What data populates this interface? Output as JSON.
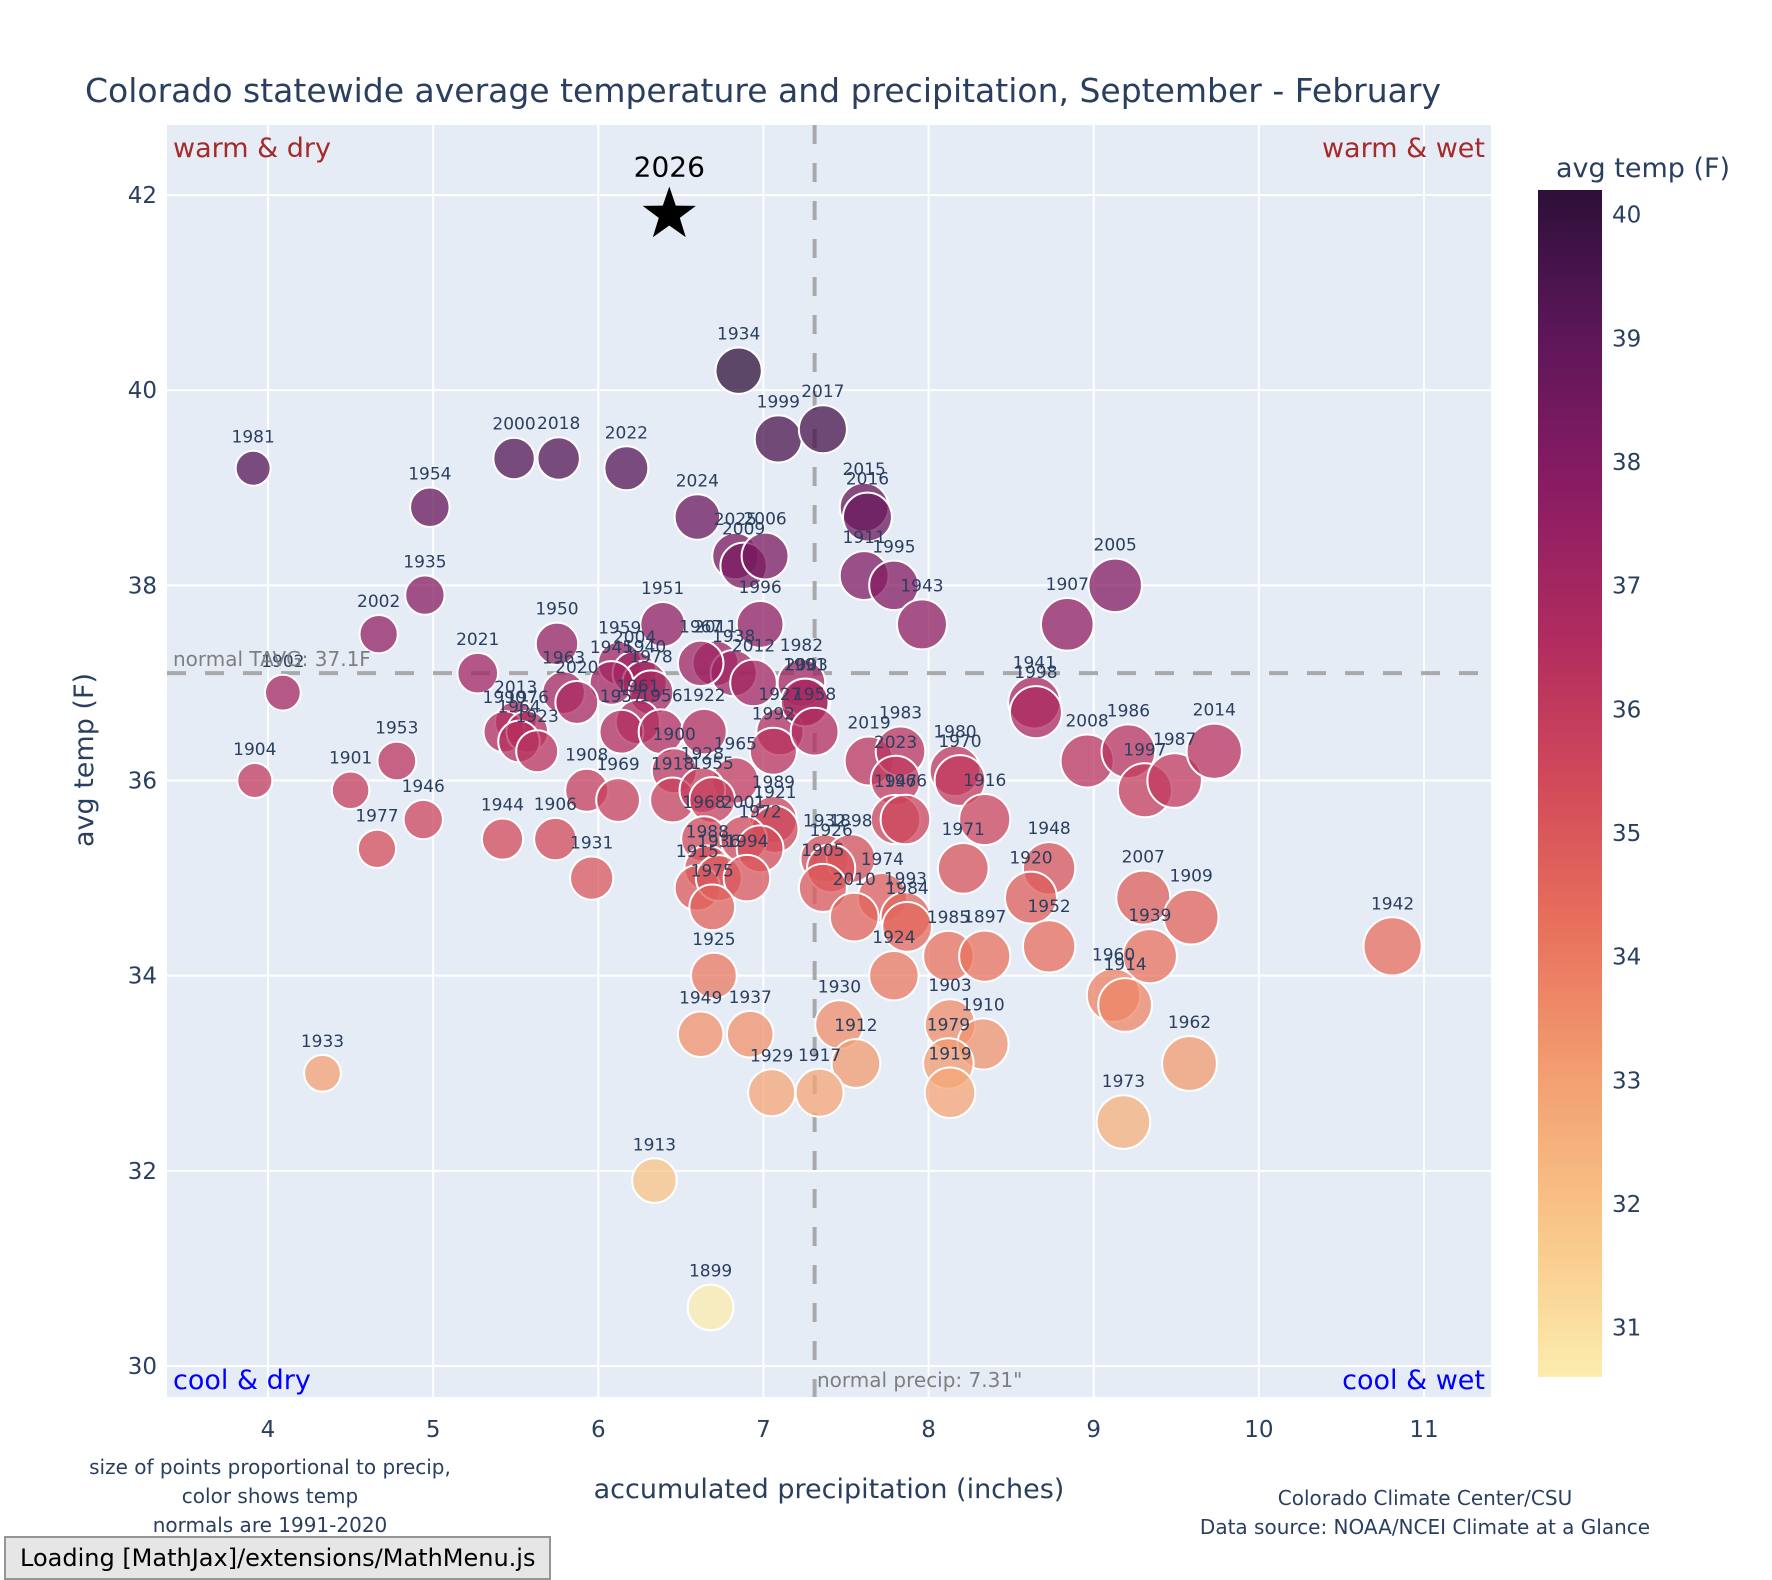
{
  "chart_data": {
    "type": "scatter",
    "title": "Colorado statewide average temperature and precipitation, September - February",
    "xlabel": "accumulated precipitation (inches)",
    "ylabel": "avg temp (F)",
    "xlim": [
      3.4,
      11.4
    ],
    "ylim": [
      29.7,
      42.7
    ],
    "xticks": [
      4,
      5,
      6,
      7,
      8,
      9,
      10,
      11
    ],
    "yticks": [
      30,
      32,
      34,
      36,
      38,
      40,
      42
    ],
    "grid": true,
    "colorbar": {
      "title": "avg temp (F)",
      "colorscale": "magma-like (light yellow = cool, dark purple = warm)",
      "range": [
        30.6,
        40.2
      ],
      "ticks": [
        31,
        32,
        33,
        34,
        35,
        36,
        37,
        38,
        39,
        40
      ],
      "placement": "right"
    },
    "marker_size_note": "size of points proportional to precip",
    "normal_temp": 37.1,
    "normal_temp_label": "normal TAVG: 37.1F",
    "normal_precip": 7.31,
    "normal_precip_label": "normal precip: 7.31\"",
    "quadrant_labels": {
      "top_left": "warm & dry",
      "top_right": "warm & wet",
      "bottom_left": "cool & dry",
      "bottom_right": "cool & wet"
    },
    "highlight": {
      "label": "2026",
      "precip": 6.43,
      "temp": 41.8,
      "marker": "star"
    },
    "points": [
      {
        "year": "1981",
        "precip": 3.91,
        "temp": 39.2
      },
      {
        "year": "1954",
        "precip": 4.98,
        "temp": 38.8
      },
      {
        "year": "2000",
        "precip": 5.49,
        "temp": 39.3
      },
      {
        "year": "2018",
        "precip": 5.76,
        "temp": 39.3
      },
      {
        "year": "2022",
        "precip": 6.17,
        "temp": 39.2
      },
      {
        "year": "1934",
        "precip": 6.85,
        "temp": 40.2
      },
      {
        "year": "1999",
        "precip": 7.09,
        "temp": 39.5
      },
      {
        "year": "2017",
        "precip": 7.36,
        "temp": 39.6
      },
      {
        "year": "2024",
        "precip": 6.6,
        "temp": 38.7
      },
      {
        "year": "2015",
        "precip": 7.61,
        "temp": 38.8
      },
      {
        "year": "2016",
        "precip": 7.63,
        "temp": 38.7
      },
      {
        "year": "2025",
        "precip": 6.83,
        "temp": 38.3
      },
      {
        "year": "2009",
        "precip": 6.88,
        "temp": 38.2
      },
      {
        "year": "2006",
        "precip": 7.01,
        "temp": 38.3
      },
      {
        "year": "1911",
        "precip": 7.61,
        "temp": 38.1
      },
      {
        "year": "1995",
        "precip": 7.79,
        "temp": 38.0
      },
      {
        "year": "1996",
        "precip": 6.98,
        "temp": 37.6
      },
      {
        "year": "1943",
        "precip": 7.96,
        "temp": 37.6
      },
      {
        "year": "1935",
        "precip": 4.95,
        "temp": 37.9
      },
      {
        "year": "2002",
        "precip": 4.67,
        "temp": 37.5
      },
      {
        "year": "2005",
        "precip": 9.13,
        "temp": 38.0
      },
      {
        "year": "1907",
        "precip": 8.84,
        "temp": 37.6
      },
      {
        "year": "1951",
        "precip": 6.39,
        "temp": 37.6
      },
      {
        "year": "1950",
        "precip": 5.75,
        "temp": 37.4
      },
      {
        "year": "2011",
        "precip": 6.71,
        "temp": 37.2
      },
      {
        "year": "1938",
        "precip": 6.82,
        "temp": 37.1
      },
      {
        "year": "2012",
        "precip": 6.94,
        "temp": 37.0
      },
      {
        "year": "1982",
        "precip": 7.23,
        "temp": 37.0
      },
      {
        "year": "2021",
        "precip": 5.27,
        "temp": 37.1
      },
      {
        "year": "1902",
        "precip": 4.09,
        "temp": 36.9
      },
      {
        "year": "1959",
        "precip": 6.13,
        "temp": 37.2
      },
      {
        "year": "2004",
        "precip": 6.22,
        "temp": 37.1
      },
      {
        "year": "1940",
        "precip": 6.28,
        "temp": 37.0
      },
      {
        "year": "1963",
        "precip": 5.79,
        "temp": 36.9
      },
      {
        "year": "1945",
        "precip": 6.08,
        "temp": 37.0
      },
      {
        "year": "1978",
        "precip": 6.32,
        "temp": 36.9
      },
      {
        "year": "2020",
        "precip": 5.87,
        "temp": 36.8
      },
      {
        "year": "1967",
        "precip": 6.62,
        "temp": 37.2
      },
      {
        "year": "2003",
        "precip": 7.26,
        "temp": 36.8
      },
      {
        "year": "1961",
        "precip": 6.24,
        "temp": 36.6
      },
      {
        "year": "1957",
        "precip": 6.14,
        "temp": 36.5
      },
      {
        "year": "1956",
        "precip": 6.38,
        "temp": 36.5
      },
      {
        "year": "1922",
        "precip": 6.64,
        "temp": 36.5
      },
      {
        "year": "1927",
        "precip": 7.1,
        "temp": 36.5
      },
      {
        "year": "1991",
        "precip": 7.25,
        "temp": 36.8
      },
      {
        "year": "2013",
        "precip": 5.5,
        "temp": 36.6
      },
      {
        "year": "1990",
        "precip": 5.43,
        "temp": 36.5
      },
      {
        "year": "1976",
        "precip": 5.57,
        "temp": 36.5
      },
      {
        "year": "1964",
        "precip": 5.52,
        "temp": 36.4
      },
      {
        "year": "1923",
        "precip": 5.63,
        "temp": 36.3
      },
      {
        "year": "1953",
        "precip": 4.78,
        "temp": 36.2
      },
      {
        "year": "1992",
        "precip": 7.06,
        "temp": 36.3
      },
      {
        "year": "1958",
        "precip": 7.31,
        "temp": 36.5
      },
      {
        "year": "1900",
        "precip": 6.46,
        "temp": 36.1
      },
      {
        "year": "1965",
        "precip": 6.83,
        "temp": 36.0
      },
      {
        "year": "2019",
        "precip": 7.64,
        "temp": 36.2
      },
      {
        "year": "1983",
        "precip": 7.83,
        "temp": 36.3
      },
      {
        "year": "2023",
        "precip": 7.8,
        "temp": 36.0
      },
      {
        "year": "1980",
        "precip": 8.16,
        "temp": 36.1
      },
      {
        "year": "1970",
        "precip": 8.19,
        "temp": 36.0
      },
      {
        "year": "1916",
        "precip": 8.34,
        "temp": 35.6
      },
      {
        "year": "1947",
        "precip": 7.8,
        "temp": 35.6
      },
      {
        "year": "1941",
        "precip": 8.64,
        "temp": 36.8
      },
      {
        "year": "1998",
        "precip": 8.65,
        "temp": 36.7
      },
      {
        "year": "2008",
        "precip": 8.96,
        "temp": 36.2
      },
      {
        "year": "1986",
        "precip": 9.21,
        "temp": 36.3
      },
      {
        "year": "1997",
        "precip": 9.31,
        "temp": 35.9
      },
      {
        "year": "1987",
        "precip": 9.49,
        "temp": 36.0
      },
      {
        "year": "2014",
        "precip": 9.73,
        "temp": 36.3
      },
      {
        "year": "1904",
        "precip": 3.92,
        "temp": 36.0
      },
      {
        "year": "1901",
        "precip": 4.5,
        "temp": 35.9
      },
      {
        "year": "1946",
        "precip": 4.94,
        "temp": 35.6
      },
      {
        "year": "1977",
        "precip": 4.66,
        "temp": 35.3
      },
      {
        "year": "1908",
        "precip": 5.93,
        "temp": 35.9
      },
      {
        "year": "1969",
        "precip": 6.12,
        "temp": 35.8
      },
      {
        "year": "1918",
        "precip": 6.45,
        "temp": 35.8
      },
      {
        "year": "1928",
        "precip": 6.63,
        "temp": 35.9
      },
      {
        "year": "1955",
        "precip": 6.69,
        "temp": 35.8
      },
      {
        "year": "1989",
        "precip": 7.06,
        "temp": 35.6
      },
      {
        "year": "1921",
        "precip": 7.07,
        "temp": 35.5
      },
      {
        "year": "1968",
        "precip": 6.64,
        "temp": 35.4
      },
      {
        "year": "2001",
        "precip": 6.88,
        "temp": 35.4
      },
      {
        "year": "1972",
        "precip": 6.98,
        "temp": 35.3
      },
      {
        "year": "1944",
        "precip": 5.42,
        "temp": 35.4
      },
      {
        "year": "1906",
        "precip": 5.74,
        "temp": 35.4
      },
      {
        "year": "1931",
        "precip": 5.96,
        "temp": 35.0
      },
      {
        "year": "1966",
        "precip": 7.86,
        "temp": 35.6
      },
      {
        "year": "1971",
        "precip": 8.21,
        "temp": 35.1
      },
      {
        "year": "1932",
        "precip": 7.37,
        "temp": 35.2
      },
      {
        "year": "1898",
        "precip": 7.53,
        "temp": 35.2
      },
      {
        "year": "1926",
        "precip": 7.41,
        "temp": 35.1
      },
      {
        "year": "1988",
        "precip": 6.66,
        "temp": 35.1
      },
      {
        "year": "1915",
        "precip": 6.6,
        "temp": 34.9
      },
      {
        "year": "1936",
        "precip": 6.73,
        "temp": 35.0
      },
      {
        "year": "1994",
        "precip": 6.9,
        "temp": 35.0
      },
      {
        "year": "1905",
        "precip": 7.36,
        "temp": 34.9
      },
      {
        "year": "1975",
        "precip": 6.69,
        "temp": 34.7
      },
      {
        "year": "1974",
        "precip": 7.72,
        "temp": 34.8
      },
      {
        "year": "2010",
        "precip": 7.55,
        "temp": 34.6
      },
      {
        "year": "1993",
        "precip": 7.86,
        "temp": 34.6
      },
      {
        "year": "1984",
        "precip": 7.87,
        "temp": 34.5
      },
      {
        "year": "1985",
        "precip": 8.12,
        "temp": 34.2
      },
      {
        "year": "1897",
        "precip": 8.34,
        "temp": 34.2
      },
      {
        "year": "1924",
        "precip": 7.79,
        "temp": 34.0
      },
      {
        "year": "1948",
        "precip": 8.73,
        "temp": 35.1
      },
      {
        "year": "1920",
        "precip": 8.62,
        "temp": 34.8
      },
      {
        "year": "1952",
        "precip": 8.73,
        "temp": 34.3
      },
      {
        "year": "2007",
        "precip": 9.3,
        "temp": 34.8
      },
      {
        "year": "1939",
        "precip": 9.34,
        "temp": 34.2
      },
      {
        "year": "1909",
        "precip": 9.59,
        "temp": 34.6
      },
      {
        "year": "1942",
        "precip": 10.81,
        "temp": 34.3
      },
      {
        "year": "1925",
        "precip": 6.7,
        "temp": 34.0
      },
      {
        "year": "1930",
        "precip": 7.46,
        "temp": 33.5
      },
      {
        "year": "1903",
        "precip": 8.13,
        "temp": 33.5
      },
      {
        "year": "1910",
        "precip": 8.33,
        "temp": 33.3
      },
      {
        "year": "1949",
        "precip": 6.62,
        "temp": 33.4
      },
      {
        "year": "1937",
        "precip": 6.92,
        "temp": 33.4
      },
      {
        "year": "1912",
        "precip": 7.56,
        "temp": 33.1
      },
      {
        "year": "1979",
        "precip": 8.12,
        "temp": 33.1
      },
      {
        "year": "1919",
        "precip": 8.13,
        "temp": 32.8
      },
      {
        "year": "1929",
        "precip": 7.05,
        "temp": 32.8
      },
      {
        "year": "1917",
        "precip": 7.34,
        "temp": 32.8
      },
      {
        "year": "1960",
        "precip": 9.12,
        "temp": 33.8
      },
      {
        "year": "1914",
        "precip": 9.19,
        "temp": 33.7
      },
      {
        "year": "1962",
        "precip": 9.58,
        "temp": 33.1
      },
      {
        "year": "1973",
        "precip": 9.18,
        "temp": 32.5
      },
      {
        "year": "1933",
        "precip": 4.33,
        "temp": 33.0
      },
      {
        "year": "1913",
        "precip": 6.34,
        "temp": 31.9
      },
      {
        "year": "1899",
        "precip": 6.68,
        "temp": 30.6
      }
    ]
  },
  "footer": {
    "notes": [
      "size of points proportional to precip,",
      "color shows temp",
      "normals are 1991-2020"
    ],
    "credit": [
      "Colorado Climate Center/CSU",
      "Data source: NOAA/NCEI Climate at a Glance"
    ]
  },
  "status": {
    "loading_text": "Loading [MathJax]/extensions/MathMenu.js"
  },
  "colors": {
    "plot_bg": "#e5ecf6",
    "grid": "#ffffff",
    "text": "#2a3f5f",
    "normal_line": "#a9a9a9",
    "warm_label": "#a52a2a",
    "cool_label": "#0000ff"
  }
}
